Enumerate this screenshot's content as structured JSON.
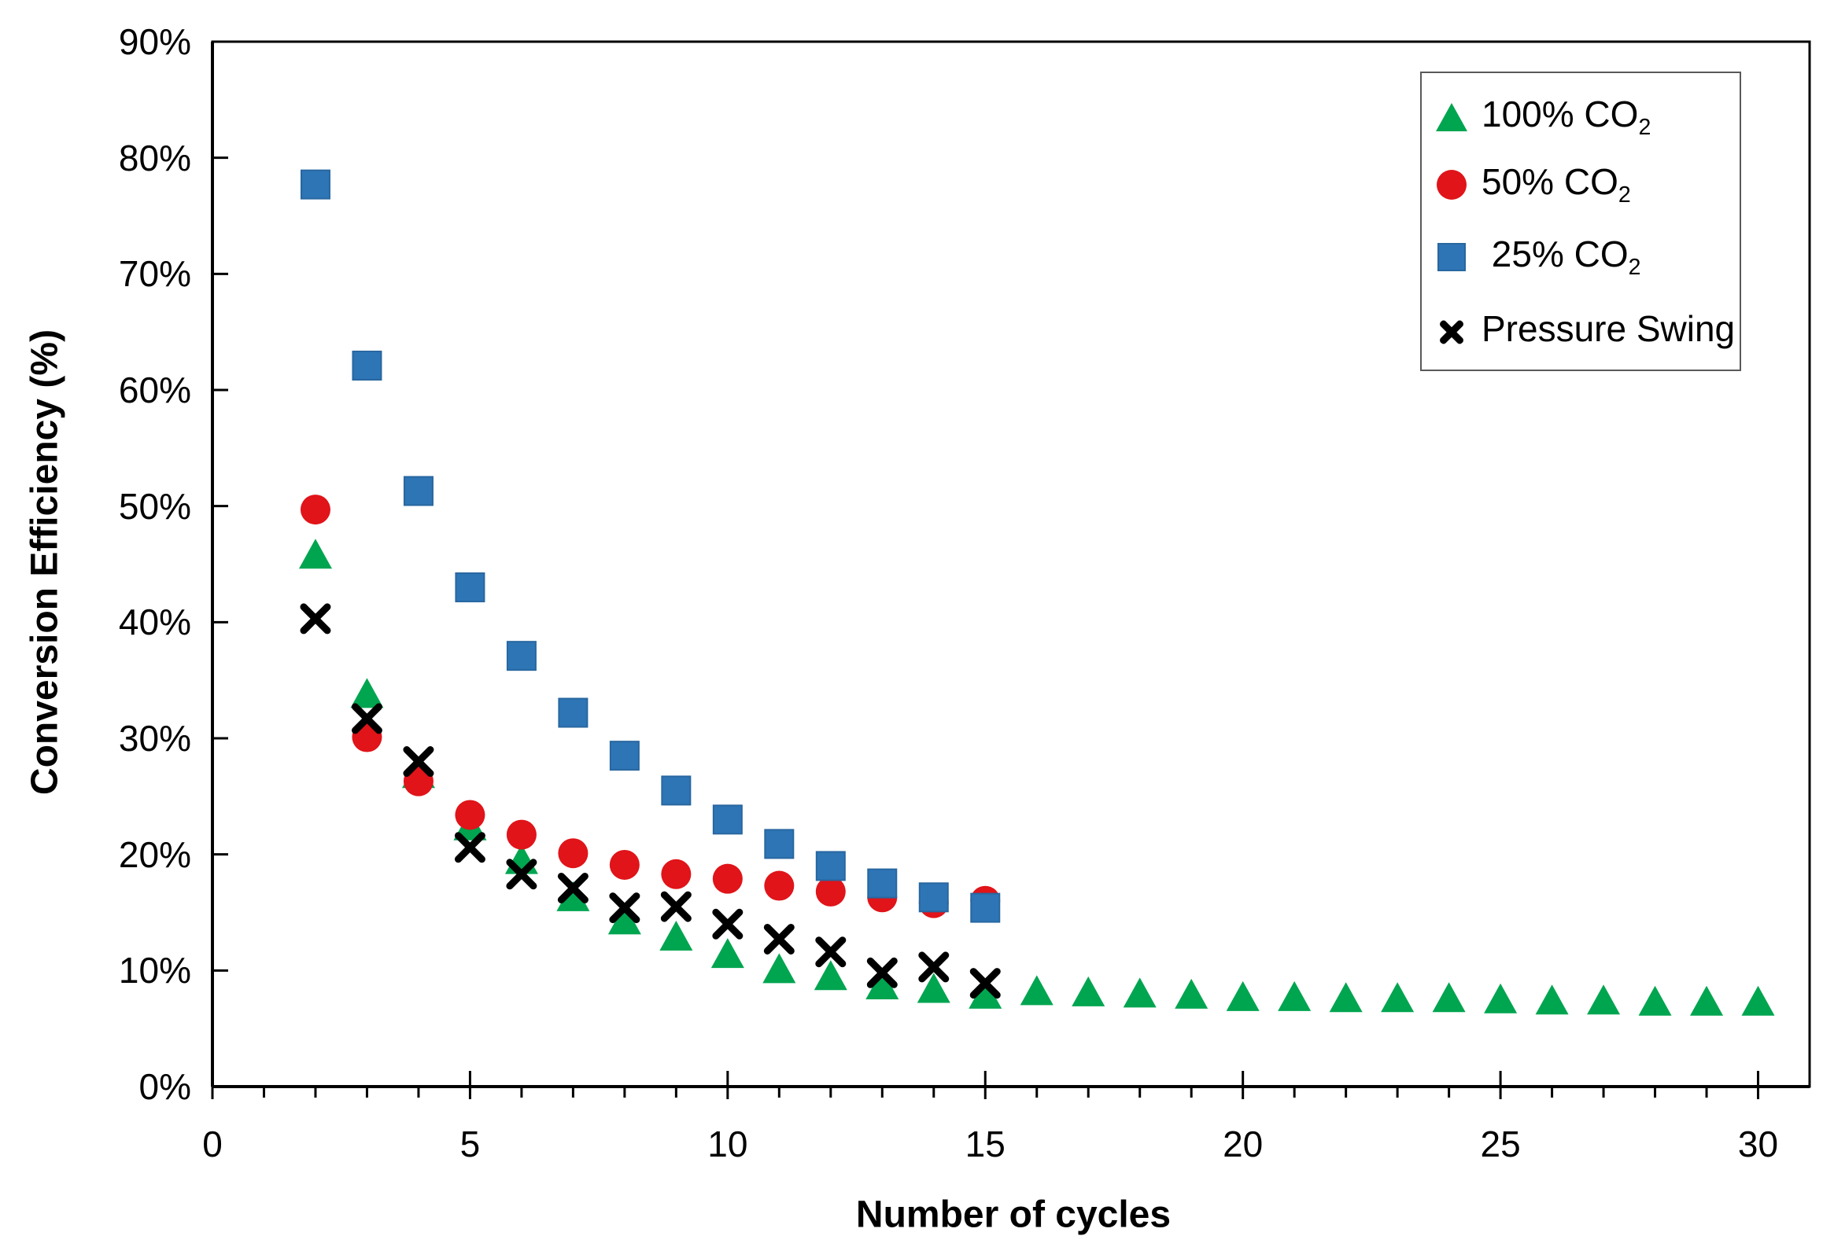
{
  "figure": {
    "background": "#ffffff",
    "plot_border_color": "#000000"
  },
  "axes": {
    "x_title": "Number of cycles",
    "y_title": "Conversion Efficiency (%)",
    "x_tick_labels": [
      "0",
      "5",
      "10",
      "15",
      "20",
      "25",
      "30"
    ],
    "y_tick_labels": [
      "0%",
      "10%",
      "20%",
      "30%",
      "40%",
      "50%",
      "60%",
      "70%",
      "80%",
      "90%"
    ]
  },
  "legend": {
    "border_color": "#595959",
    "items": [
      {
        "base": "100% CO",
        "sub": "2",
        "marker": "triangle",
        "color": "#00A550"
      },
      {
        "base": "50% CO",
        "sub": "2",
        "marker": "circle",
        "color": "#E01419"
      },
      {
        "base": " 25% CO",
        "sub": "2",
        "marker": "square",
        "color": "#2E75B6"
      },
      {
        "base": "Pressure Swing",
        "sub": "",
        "marker": "x",
        "color": "#000000"
      }
    ]
  },
  "chart_data": {
    "type": "scatter",
    "title": "",
    "xlabel": "Number of cycles",
    "ylabel": "Conversion Efficiency (%)",
    "xlim": [
      0,
      31
    ],
    "ylim": [
      0,
      90
    ],
    "x_ticks_major": [
      0,
      5,
      10,
      15,
      20,
      25,
      30
    ],
    "x_minor_tick_step": 1,
    "y_ticks": [
      0,
      10,
      20,
      30,
      40,
      50,
      60,
      70,
      80,
      90
    ],
    "grid": false,
    "legend_position": "top-right",
    "series": [
      {
        "name": "100% CO2",
        "marker": "triangle",
        "color": "#00A550",
        "x": [
          2,
          3,
          4,
          5,
          6,
          7,
          8,
          9,
          10,
          11,
          12,
          13,
          14,
          15,
          16,
          17,
          18,
          19,
          20,
          21,
          22,
          23,
          24,
          25,
          26,
          27,
          28,
          29,
          30
        ],
        "y": [
          45.9,
          33.9,
          27.0,
          22.5,
          19.6,
          16.4,
          14.4,
          13.0,
          11.5,
          10.2,
          9.6,
          8.8,
          8.5,
          8.0,
          8.3,
          8.2,
          8.1,
          8.0,
          7.8,
          7.8,
          7.7,
          7.7,
          7.7,
          7.6,
          7.5,
          7.5,
          7.4,
          7.4,
          7.4
        ]
      },
      {
        "name": "50% CO2",
        "marker": "circle",
        "color": "#E01419",
        "x": [
          2,
          3,
          4,
          5,
          6,
          7,
          8,
          9,
          10,
          11,
          12,
          13,
          14,
          15
        ],
        "y": [
          49.7,
          30.1,
          26.3,
          23.4,
          21.7,
          20.1,
          19.1,
          18.3,
          17.9,
          17.3,
          16.8,
          16.3,
          15.8,
          16.0
        ]
      },
      {
        "name": "25% CO2",
        "marker": "square",
        "color": "#2E75B6",
        "x": [
          2,
          3,
          4,
          5,
          6,
          7,
          8,
          9,
          10,
          11,
          12,
          13,
          14,
          15
        ],
        "y": [
          77.7,
          62.1,
          51.3,
          43.0,
          37.1,
          32.2,
          28.5,
          25.5,
          23.0,
          20.9,
          19.0,
          17.5,
          16.3,
          15.4
        ]
      },
      {
        "name": "Pressure Swing",
        "marker": "x",
        "color": "#000000",
        "x": [
          2,
          3,
          4,
          5,
          6,
          7,
          8,
          9,
          10,
          11,
          12,
          13,
          14,
          15
        ],
        "y": [
          40.3,
          31.7,
          28.0,
          20.6,
          18.3,
          17.1,
          15.4,
          15.5,
          14.0,
          12.7,
          11.6,
          9.8,
          10.3,
          8.9
        ]
      }
    ]
  }
}
